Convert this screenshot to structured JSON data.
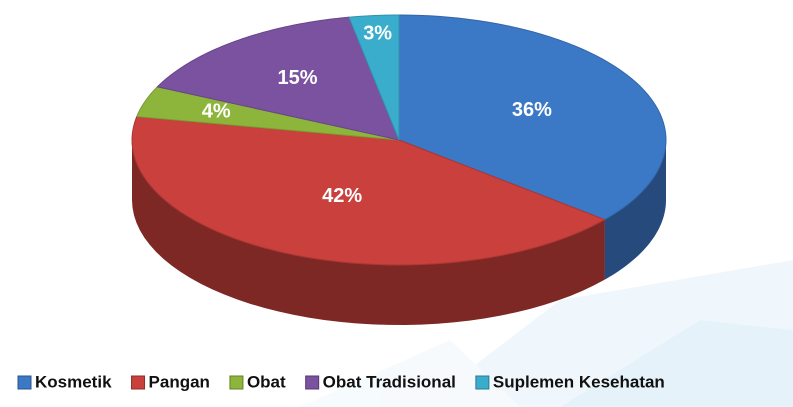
{
  "chart_data": {
    "type": "pie",
    "categories": [
      "Kosmetik",
      "Pangan",
      "Obat",
      "Obat Tradisional",
      "Suplemen Kesehatan"
    ],
    "values": [
      36,
      42,
      4,
      15,
      3
    ],
    "value_labels": [
      "36%",
      "42%",
      "4%",
      "15%",
      "3%"
    ],
    "colors": [
      "#3b78c6",
      "#c9403c",
      "#8db53c",
      "#7a52a0",
      "#3aadcc"
    ],
    "legend": "bottom"
  }
}
